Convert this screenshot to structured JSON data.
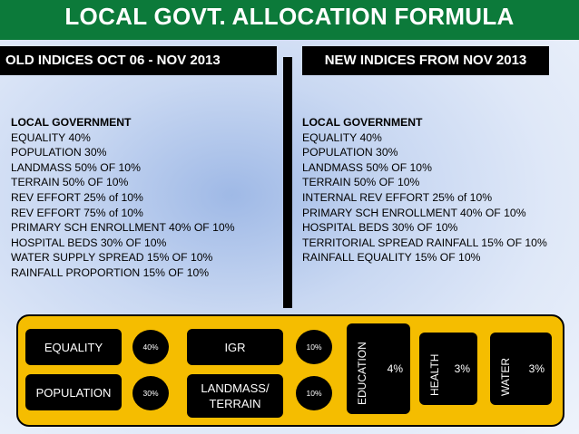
{
  "title": "LOCAL GOVT. ALLOCATION FORMULA",
  "old_header": "OLD INDICES OCT 06 - NOV 2013",
  "new_header": "NEW INDICES FROM NOV 2013",
  "old_list": {
    "heading": "LOCAL GOVERNMENT",
    "items": [
      "EQUALITY 40%",
      "POPULATION 30%",
      "LANDMASS 50% OF 10%",
      "TERRAIN 50% OF 10%",
      "REV EFFORT 25% of 10%",
      "REV EFFORT 75% of 10%",
      "PRIMARY SCH ENROLLMENT 40% OF 10%",
      "HOSPITAL BEDS 30% OF 10%",
      "WATER SUPPLY SPREAD 15% OF 10%",
      "RAINFALL PROPORTION 15% OF 10%"
    ]
  },
  "new_list": {
    "heading": "LOCAL GOVERNMENT",
    "items": [
      "EQUALITY 40%",
      "POPULATION 30%",
      "LANDMASS 50% OF 10%",
      "TERRAIN 50% OF 10%",
      "INTERNAL REV EFFORT 25% of 10%",
      "PRIMARY SCH ENROLLMENT 40% OF 10%",
      "HOSPITAL BEDS 30% OF 10%",
      "TERRITORIAL SPREAD RAINFALL 15% OF 10%",
      "RAINFALL EQUALITY 15% OF 10%"
    ]
  },
  "panel": {
    "equality_label": "EQUALITY",
    "equality_pct": "40%",
    "population_label": "POPULATION",
    "population_pct": "30%",
    "igr_label": "IGR",
    "igr_pct": "10%",
    "landmass_label_1": "LANDMASS/",
    "landmass_label_2": "TERRAIN",
    "landmass_pct": "10%",
    "education_label": "EDUCATION",
    "education_pct": "4%",
    "health_label": "HEALTH",
    "health_pct": "3%",
    "water_label": "WATER",
    "water_pct": "3%"
  },
  "colors": {
    "title_bg": "#0c7a3a",
    "panel_bg": "#f5bd00",
    "box_bg": "#000000"
  }
}
